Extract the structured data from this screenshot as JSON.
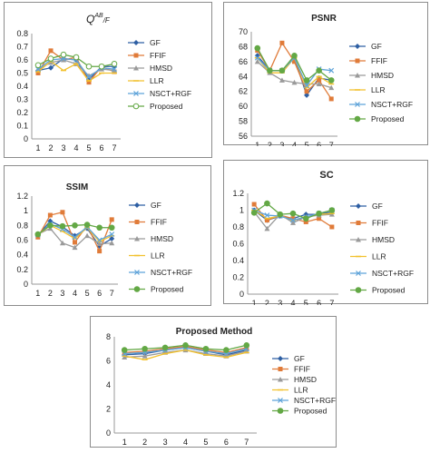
{
  "colors": {
    "GF": "#2e5fa3",
    "FFIF": "#e07b39",
    "HMSD": "#9a9a9a",
    "LLR": "#f2c12e",
    "NSCT+RGF": "#5ea3d9",
    "Proposed": "#63a845",
    "ProposedHollow": "#63a845"
  },
  "chart_data": [
    {
      "type": "line",
      "title": "Q^AB/F",
      "title_main": "Q",
      "title_sup": "AB",
      "title_tail": "/F",
      "x": [
        1,
        2,
        3,
        4,
        5,
        6,
        7
      ],
      "ylim": [
        0,
        0.8
      ],
      "yticks": [
        "0",
        "0.1",
        "0.2",
        "0.3",
        "0.4",
        "0.5",
        "0.6",
        "0.7",
        "0.8"
      ],
      "series": [
        {
          "name": "GF",
          "values": [
            0.52,
            0.54,
            0.61,
            0.6,
            0.45,
            0.55,
            0.55
          ]
        },
        {
          "name": "FFIF",
          "values": [
            0.5,
            0.67,
            0.6,
            0.62,
            0.43,
            0.55,
            0.51
          ]
        },
        {
          "name": "HMSD",
          "values": [
            0.53,
            0.58,
            0.6,
            0.57,
            0.48,
            0.53,
            0.52
          ]
        },
        {
          "name": "LLR",
          "values": [
            0.51,
            0.59,
            0.52,
            0.57,
            0.44,
            0.5,
            0.5
          ]
        },
        {
          "name": "NSCT+RGF",
          "values": [
            0.53,
            0.6,
            0.61,
            0.6,
            0.47,
            0.54,
            0.53
          ]
        },
        {
          "name": "Proposed",
          "values": [
            0.56,
            0.61,
            0.64,
            0.62,
            0.55,
            0.55,
            0.57
          ]
        }
      ]
    },
    {
      "type": "line",
      "title": "PSNR",
      "x": [
        1,
        2,
        3,
        4,
        5,
        6,
        7
      ],
      "ylim": [
        56,
        70
      ],
      "yticks": [
        "56",
        "58",
        "60",
        "62",
        "64",
        "66",
        "68",
        "70"
      ],
      "series": [
        {
          "name": "GF",
          "values": [
            66.8,
            64.8,
            64.8,
            66.5,
            61.5,
            63.8,
            63.5
          ]
        },
        {
          "name": "FFIF",
          "values": [
            67.5,
            64.8,
            68.5,
            66.0,
            62.0,
            63.5,
            61.0
          ]
        },
        {
          "name": "HMSD",
          "values": [
            66.0,
            64.5,
            63.5,
            63.2,
            63.0,
            63.0,
            62.5
          ]
        },
        {
          "name": "LLR",
          "values": [
            66.5,
            64.5,
            64.5,
            66.5,
            62.5,
            64.0,
            63.0
          ]
        },
        {
          "name": "NSCT+RGF",
          "values": [
            66.5,
            64.8,
            64.8,
            66.5,
            62.8,
            65.0,
            64.8
          ]
        },
        {
          "name": "Proposed",
          "values": [
            67.8,
            64.8,
            64.8,
            66.8,
            63.5,
            64.8,
            63.5
          ]
        }
      ]
    },
    {
      "type": "line",
      "title": "SSIM",
      "x": [
        1,
        2,
        3,
        4,
        5,
        6,
        7
      ],
      "ylim": [
        0,
        1.2
      ],
      "yticks": [
        "0",
        "0.2",
        "0.4",
        "0.6",
        "0.8",
        "1",
        "1.2"
      ],
      "series": [
        {
          "name": "GF",
          "values": [
            0.66,
            0.86,
            0.78,
            0.66,
            0.76,
            0.52,
            0.62
          ]
        },
        {
          "name": "FFIF",
          "values": [
            0.64,
            0.94,
            0.98,
            0.57,
            0.8,
            0.45,
            0.88
          ]
        },
        {
          "name": "HMSD",
          "values": [
            0.68,
            0.76,
            0.56,
            0.5,
            0.66,
            0.55,
            0.56
          ]
        },
        {
          "name": "LLR",
          "values": [
            0.67,
            0.8,
            0.72,
            0.62,
            0.77,
            0.58,
            0.66
          ]
        },
        {
          "name": "NSCT+RGF",
          "values": [
            0.67,
            0.82,
            0.75,
            0.64,
            0.78,
            0.6,
            0.68
          ]
        },
        {
          "name": "Proposed",
          "values": [
            0.68,
            0.8,
            0.79,
            0.8,
            0.81,
            0.77,
            0.77
          ]
        }
      ]
    },
    {
      "type": "line",
      "title": "SC",
      "x": [
        1,
        2,
        3,
        4,
        5,
        6,
        7
      ],
      "ylim": [
        0,
        1.2
      ],
      "yticks": [
        "0",
        "0.2",
        "0.4",
        "0.6",
        "0.8",
        "1",
        "1.2"
      ],
      "series": [
        {
          "name": "GF",
          "values": [
            1.0,
            0.88,
            0.93,
            0.9,
            0.95,
            0.95,
            0.98
          ]
        },
        {
          "name": "FFIF",
          "values": [
            1.07,
            0.88,
            0.94,
            0.9,
            0.86,
            0.9,
            0.8
          ]
        },
        {
          "name": "HMSD",
          "values": [
            0.98,
            0.78,
            0.95,
            0.85,
            0.92,
            0.94,
            0.95
          ]
        },
        {
          "name": "LLR",
          "values": [
            1.0,
            0.9,
            0.93,
            0.88,
            0.92,
            0.95,
            0.96
          ]
        },
        {
          "name": "NSCT+RGF",
          "values": [
            1.0,
            0.94,
            0.93,
            0.88,
            0.92,
            0.96,
            1.0
          ]
        },
        {
          "name": "Proposed",
          "values": [
            0.97,
            1.08,
            0.95,
            0.96,
            0.9,
            0.96,
            1.0
          ]
        }
      ]
    },
    {
      "type": "line",
      "title": "Proposed Method",
      "x": [
        1,
        2,
        3,
        4,
        5,
        6,
        7
      ],
      "ylim": [
        0,
        8
      ],
      "yticks": [
        "0",
        "2",
        "4",
        "6",
        "8"
      ],
      "series": [
        {
          "name": "GF",
          "values": [
            6.5,
            6.6,
            6.9,
            7.1,
            6.8,
            6.5,
            6.9
          ]
        },
        {
          "name": "FFIF",
          "values": [
            6.7,
            6.8,
            7.0,
            7.2,
            6.9,
            6.7,
            7.1
          ]
        },
        {
          "name": "HMSD",
          "values": [
            6.3,
            6.4,
            6.7,
            6.9,
            6.6,
            6.4,
            6.8
          ]
        },
        {
          "name": "LLR",
          "values": [
            6.4,
            6.1,
            6.6,
            6.9,
            6.5,
            6.3,
            6.7
          ]
        },
        {
          "name": "NSCT+RGF",
          "values": [
            6.6,
            6.7,
            6.9,
            7.1,
            6.8,
            6.6,
            7.0
          ]
        },
        {
          "name": "Proposed",
          "values": [
            6.9,
            7.0,
            7.1,
            7.3,
            7.0,
            6.9,
            7.3
          ]
        }
      ]
    }
  ]
}
